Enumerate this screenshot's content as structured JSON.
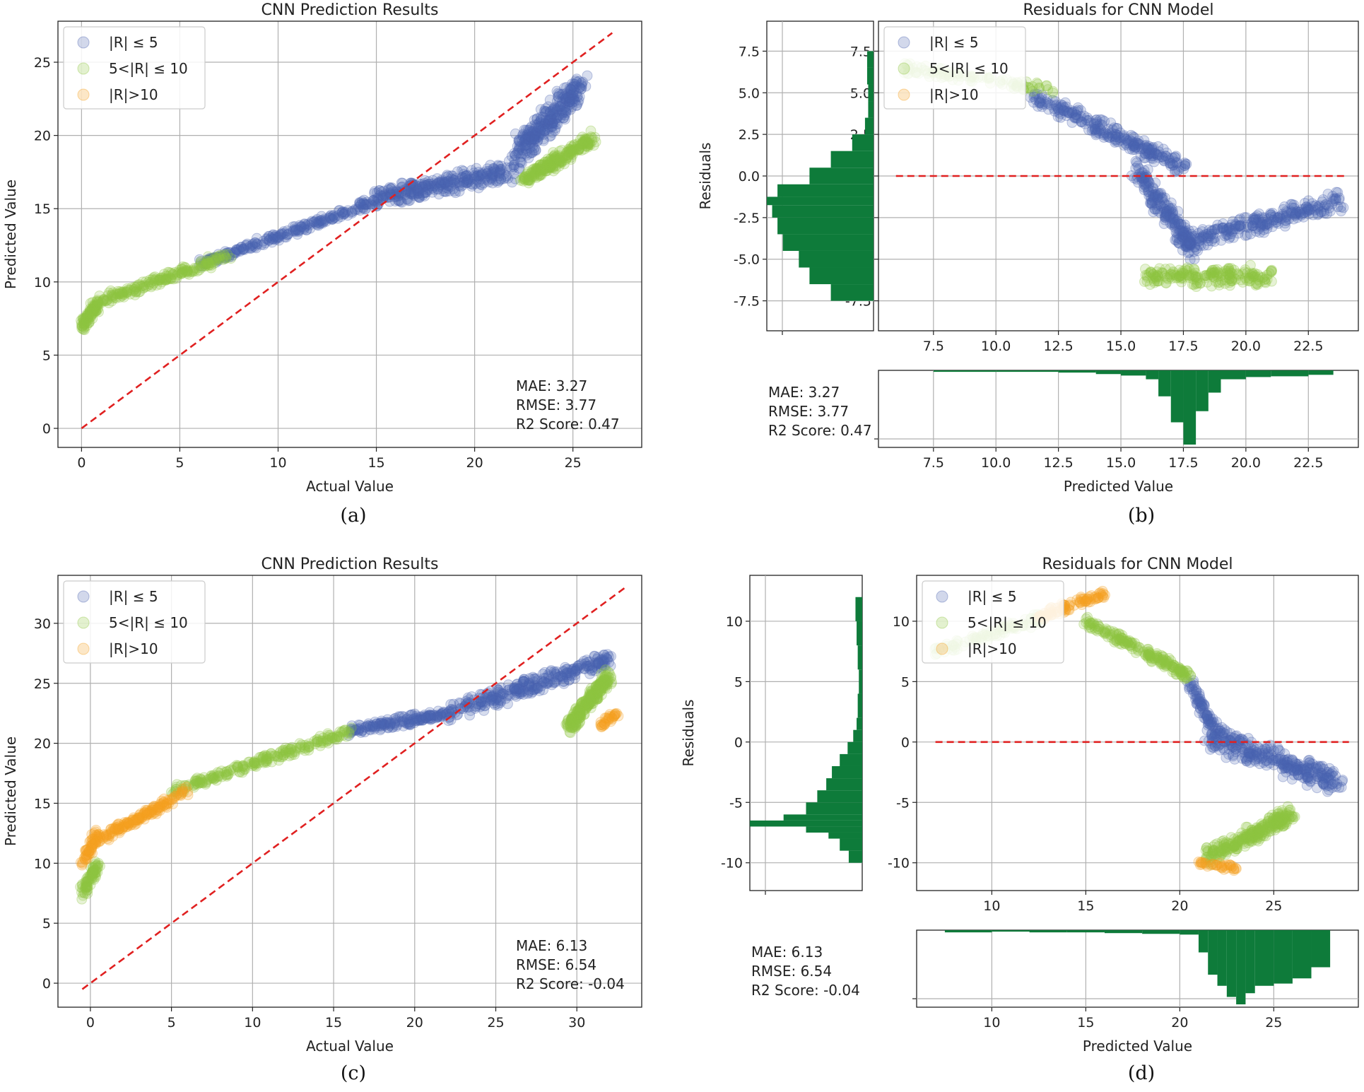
{
  "legend_labels": [
    "|R| ≤ 5",
    "5<|R| ≤ 10",
    "|R|>10"
  ],
  "colors": {
    "blue": "#4a62b0",
    "green": "#8ec641",
    "orange": "#f4a01f",
    "red_line": "#e02020",
    "hist": "#0e7b3a",
    "grid": "#b0b0b0"
  },
  "chart_data": [
    {
      "id": "a",
      "type": "scatter",
      "caption": "(a)",
      "title": "CNN Prediction Results",
      "xlabel": "Actual Value",
      "ylabel": "Predicted Value",
      "xlim": [
        -1.2,
        28.5
      ],
      "ylim": [
        -1.3,
        27.8
      ],
      "xticks": [
        0,
        5,
        10,
        15,
        20,
        25
      ],
      "yticks": [
        0,
        5,
        10,
        15,
        20,
        25
      ],
      "grid": true,
      "legend": "top-left",
      "reference_line": {
        "from": [
          0,
          0
        ],
        "to": [
          27,
          27
        ],
        "style": "dashed"
      },
      "metrics": [
        "MAE: 3.27",
        "RMSE: 3.77",
        "R2 Score: 0.47"
      ],
      "series": [
        {
          "name": "|R| ≤ 5",
          "color": "blue",
          "segments": [
            {
              "x": [
                6,
                15
              ],
              "y": [
                11.2,
                15.5
              ],
              "spread": 0.35,
              "n": 240
            },
            {
              "x": [
                15,
                22
              ],
              "y": [
                15.8,
                17.6
              ],
              "spread": 0.8,
              "n": 300
            },
            {
              "x": [
                22,
                25.5
              ],
              "y": [
                18.5,
                23.5
              ],
              "spread": 1.2,
              "n": 300
            }
          ]
        },
        {
          "name": "5<|R| ≤ 10",
          "color": "green",
          "segments": [
            {
              "x": [
                0,
                0.8
              ],
              "y": [
                7.0,
                8.3
              ],
              "spread": 0.5,
              "n": 80
            },
            {
              "x": [
                0.5,
                7.5
              ],
              "y": [
                8.5,
                11.8
              ],
              "spread": 0.45,
              "n": 200
            },
            {
              "x": [
                22.5,
                26
              ],
              "y": [
                17.0,
                19.8
              ],
              "spread": 0.6,
              "n": 220
            }
          ]
        },
        {
          "name": "|R|>10",
          "color": "orange",
          "segments": []
        }
      ]
    },
    {
      "id": "b",
      "type": "scatter",
      "caption": "(b)",
      "title": "Residuals for CNN Model",
      "xlabel": "Predicted Value",
      "ylabel": "Residuals",
      "xlim": [
        5.3,
        24.5
      ],
      "ylim": [
        -9.3,
        9.3
      ],
      "xticks": [
        7.5,
        10.0,
        12.5,
        15.0,
        17.5,
        20.0,
        22.5
      ],
      "yticks": [
        -7.5,
        -5.0,
        -2.5,
        0.0,
        2.5,
        5.0,
        7.5
      ],
      "grid": true,
      "legend": "top-left",
      "reference_line": {
        "from": [
          6,
          0
        ],
        "to": [
          24,
          0
        ],
        "style": "dashed"
      },
      "metrics": [
        "MAE: 3.27",
        "RMSE: 3.77",
        "R2 Score: 0.47"
      ],
      "hist_right": {
        "bins": [
          -7.5,
          -6.5,
          -5.5,
          -4.5,
          -3.5,
          -2.5,
          -1.75,
          -1.25,
          -0.5,
          0.5,
          1.5,
          2.5,
          3.5,
          4.5,
          5.5,
          6.5,
          7.5
        ],
        "counts": [
          0.4,
          0.6,
          0.7,
          0.85,
          0.9,
          0.95,
          1.0,
          0.9,
          0.6,
          0.4,
          0.2,
          0.08,
          0.05,
          0.05,
          0.06,
          0.06,
          0.07
        ]
      },
      "hist_top": {
        "bins": [
          7.5,
          10,
          12.5,
          14,
          15,
          16,
          16.5,
          17,
          17.5,
          18,
          18.5,
          19,
          20,
          21,
          22.5,
          23.5
        ],
        "counts": [
          0.02,
          0.02,
          0.03,
          0.05,
          0.07,
          0.12,
          0.35,
          0.7,
          1.0,
          0.55,
          0.3,
          0.12,
          0.09,
          0.08,
          0.06,
          0.05
        ]
      },
      "series": [
        {
          "name": "|R| ≤ 5",
          "color": "blue",
          "segments": [
            {
              "x": [
                11.5,
                17.5
              ],
              "y": [
                4.8,
                0.5
              ],
              "spread": 0.6,
              "n": 250
            },
            {
              "x": [
                15.5,
                18
              ],
              "y": [
                0.5,
                -4.5
              ],
              "spread": 0.7,
              "n": 200
            },
            {
              "x": [
                17.5,
                23.8
              ],
              "y": [
                -4.0,
                -1.5
              ],
              "spread": 0.7,
              "n": 260
            }
          ]
        },
        {
          "name": "5<|R| ≤ 10",
          "color": "green",
          "segments": [
            {
              "x": [
                6.2,
                12.5
              ],
              "y": [
                6.5,
                5.2
              ],
              "spread": 0.4,
              "n": 100
            },
            {
              "x": [
                16,
                21
              ],
              "y": [
                -6.0,
                -6.0
              ],
              "spread": 0.7,
              "n": 200
            }
          ]
        },
        {
          "name": "|R|>10",
          "color": "orange",
          "segments": []
        }
      ]
    },
    {
      "id": "c",
      "type": "scatter",
      "caption": "(c)",
      "title": "CNN Prediction Results",
      "xlabel": "Actual Value",
      "ylabel": "Predicted Value",
      "xlim": [
        -2,
        34
      ],
      "ylim": [
        -2,
        34
      ],
      "xticks": [
        0,
        5,
        10,
        15,
        20,
        25,
        30
      ],
      "yticks": [
        0,
        5,
        10,
        15,
        20,
        25,
        30
      ],
      "grid": true,
      "legend": "top-left",
      "reference_line": {
        "from": [
          -0.5,
          -0.5
        ],
        "to": [
          33,
          33
        ],
        "style": "dashed"
      },
      "metrics": [
        "MAE: 6.13",
        "RMSE: 6.54",
        "R2 Score: -0.04"
      ],
      "series": [
        {
          "name": "|R| ≤ 5",
          "color": "blue",
          "segments": [
            {
              "x": [
                16,
                22
              ],
              "y": [
                21.0,
                22.5
              ],
              "spread": 0.5,
              "n": 160
            },
            {
              "x": [
                22,
                32
              ],
              "y": [
                22.5,
                27.0
              ],
              "spread": 0.9,
              "n": 300
            }
          ]
        },
        {
          "name": "5<|R| ≤ 10",
          "color": "green",
          "segments": [
            {
              "x": [
                -0.5,
                0.5
              ],
              "y": [
                7.5,
                10.0
              ],
              "spread": 0.6,
              "n": 70
            },
            {
              "x": [
                5,
                16
              ],
              "y": [
                16.0,
                21.0
              ],
              "spread": 0.5,
              "n": 220
            },
            {
              "x": [
                29.5,
                32
              ],
              "y": [
                21.5,
                25.5
              ],
              "spread": 0.8,
              "n": 240
            }
          ]
        },
        {
          "name": "|R|>10",
          "color": "orange",
          "segments": [
            {
              "x": [
                -0.5,
                0.5
              ],
              "y": [
                10.0,
                12.5
              ],
              "spread": 0.6,
              "n": 60
            },
            {
              "x": [
                0.5,
                6
              ],
              "y": [
                12.0,
                16.0
              ],
              "spread": 0.5,
              "n": 150
            },
            {
              "x": [
                31.5,
                32.5
              ],
              "y": [
                21.5,
                22.5
              ],
              "spread": 0.4,
              "n": 30
            }
          ]
        }
      ]
    },
    {
      "id": "d",
      "type": "scatter",
      "caption": "(d)",
      "title": "Residuals for CNN Model",
      "xlabel": "Predicted Value",
      "ylabel": "Residuals",
      "xlim": [
        6,
        29.5
      ],
      "ylim": [
        -12.3,
        13.8
      ],
      "xticks": [
        10,
        15,
        20,
        25
      ],
      "yticks": [
        -10,
        -5,
        0,
        5,
        10
      ],
      "grid": true,
      "legend": "top-left",
      "reference_line": {
        "from": [
          7,
          0
        ],
        "to": [
          29,
          0
        ],
        "style": "dashed"
      },
      "metrics": [
        "MAE: 6.13",
        "RMSE: 6.54",
        "R2 Score: -0.04"
      ],
      "hist_right": {
        "bins": [
          -10,
          -9,
          -8,
          -7.5,
          -7,
          -6.5,
          -6,
          -5,
          -4,
          -3,
          -2,
          -1,
          0,
          1,
          2,
          4,
          6,
          8,
          10,
          12
        ],
        "counts": [
          0.12,
          0.2,
          0.3,
          0.5,
          1.0,
          0.7,
          0.5,
          0.4,
          0.32,
          0.27,
          0.2,
          0.13,
          0.08,
          0.05,
          0.04,
          0.03,
          0.04,
          0.05,
          0.06,
          0.06
        ]
      },
      "hist_top": {
        "bins": [
          7.5,
          10,
          12,
          14,
          16,
          18,
          20,
          21,
          21.5,
          22,
          22.5,
          23,
          23.5,
          24,
          25,
          26,
          27,
          28
        ],
        "counts": [
          0.03,
          0.02,
          0.03,
          0.03,
          0.04,
          0.05,
          0.06,
          0.3,
          0.6,
          0.75,
          0.9,
          1.0,
          0.85,
          0.75,
          0.72,
          0.65,
          0.5,
          0.1
        ]
      },
      "series": [
        {
          "name": "|R| ≤ 5",
          "color": "blue",
          "segments": [
            {
              "x": [
                20.5,
                22
              ],
              "y": [
                5.0,
                0.5
              ],
              "spread": 0.6,
              "n": 80
            },
            {
              "x": [
                21.5,
                28.5
              ],
              "y": [
                0.5,
                -3.5
              ],
              "spread": 1.2,
              "n": 300
            }
          ]
        },
        {
          "name": "5<|R| ≤ 10",
          "color": "green",
          "segments": [
            {
              "x": [
                7,
                13
              ],
              "y": [
                7.5,
                10.5
              ],
              "spread": 0.6,
              "n": 100
            },
            {
              "x": [
                15,
                20.5
              ],
              "y": [
                10.0,
                5.5
              ],
              "spread": 0.5,
              "n": 180
            },
            {
              "x": [
                21.5,
                26
              ],
              "y": [
                -9.5,
                -6.0
              ],
              "spread": 0.8,
              "n": 260
            }
          ]
        },
        {
          "name": "|R|>10",
          "color": "orange",
          "segments": [
            {
              "x": [
                12.5,
                16
              ],
              "y": [
                10.3,
                12.3
              ],
              "spread": 0.5,
              "n": 90
            },
            {
              "x": [
                21,
                23
              ],
              "y": [
                -10.0,
                -10.5
              ],
              "spread": 0.3,
              "n": 35
            }
          ]
        }
      ]
    }
  ]
}
